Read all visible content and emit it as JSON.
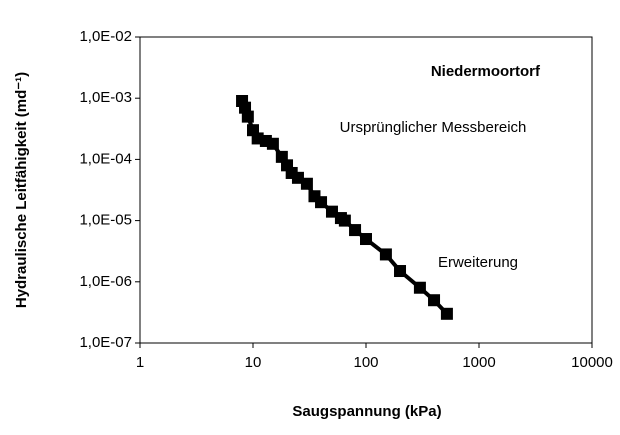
{
  "chart_data": {
    "type": "line",
    "xlabel": "Saugspannung (kPa)",
    "ylabel": "Hydraulische Leitfähigkeit (md⁻¹)",
    "annotations": [
      "Niedermoortorf",
      "Ursprünglicher Messbereich",
      "Erweiterung"
    ],
    "xscale": "log",
    "yscale": "log",
    "grid": false,
    "xlim": [
      1,
      10000
    ],
    "xticks": [
      1,
      10,
      100,
      1000,
      10000
    ],
    "ylim": [
      1e-07,
      0.01
    ],
    "yticks": [
      {
        "value": 1e-07,
        "label": "1,0E-07"
      },
      {
        "value": 1e-06,
        "label": "1,0E-06"
      },
      {
        "value": 1e-05,
        "label": "1,0E-05"
      },
      {
        "value": 0.0001,
        "label": "1,0E-04"
      },
      {
        "value": 0.001,
        "label": "1,0E-03"
      },
      {
        "value": 0.01,
        "label": "1,0E-02"
      }
    ],
    "series": [
      {
        "color": "#000000",
        "x": [
          8,
          8.5,
          9,
          10,
          11,
          13,
          15,
          18,
          20,
          22,
          25,
          30,
          35,
          40,
          50,
          60,
          65,
          80,
          100,
          150,
          200,
          300,
          400,
          520
        ],
        "values": [
          0.0009,
          0.0007,
          0.0005,
          0.0003,
          0.00022,
          0.0002,
          0.00018,
          0.00011,
          8e-05,
          6e-05,
          5e-05,
          4e-05,
          2.5e-05,
          2e-05,
          1.4e-05,
          1.1e-05,
          1e-05,
          7e-06,
          5e-06,
          2.8e-06,
          1.5e-06,
          8e-07,
          5e-07,
          3e-07
        ]
      }
    ]
  }
}
